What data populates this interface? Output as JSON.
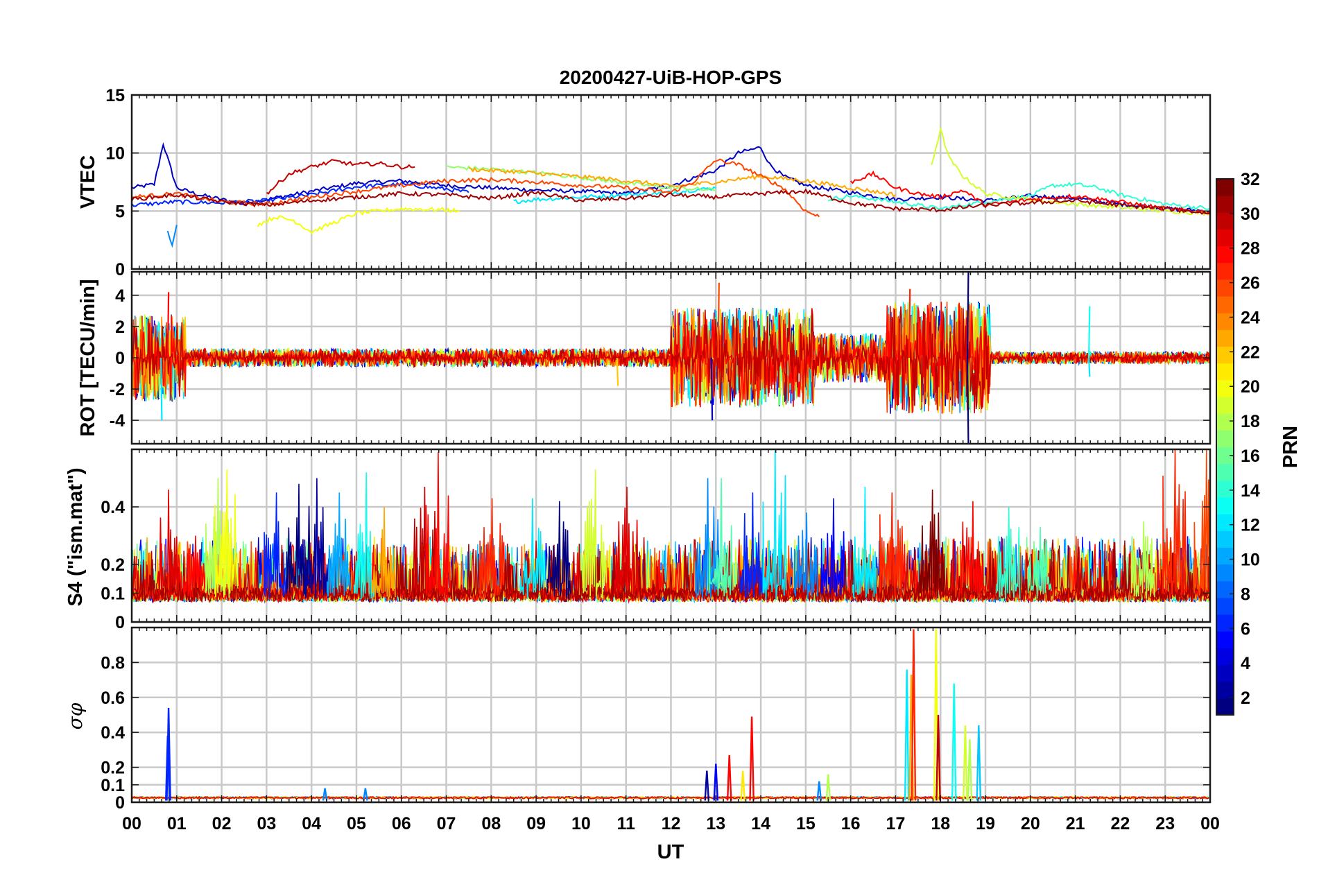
{
  "chart_data": {
    "type": "line",
    "title": "20200427-UiB-HOP-GPS",
    "xlabel": "UT",
    "x_tick_labels": [
      "00",
      "01",
      "02",
      "03",
      "04",
      "05",
      "06",
      "07",
      "08",
      "09",
      "10",
      "11",
      "12",
      "13",
      "14",
      "15",
      "16",
      "17",
      "18",
      "19",
      "20",
      "21",
      "22",
      "23",
      "00"
    ],
    "xlim_hours": [
      0,
      24
    ],
    "grid": true,
    "panels": [
      {
        "key": "vtec",
        "ylabel": "VTEC",
        "ylim": [
          0,
          15
        ],
        "ytick_values": [
          0,
          5,
          10,
          15
        ],
        "ytick_labels": [
          "0",
          "5",
          "10",
          "15"
        ],
        "series": [
          {
            "prn": 3,
            "x": [
              0,
              0.5,
              0.7,
              1,
              1.5,
              2,
              2.5,
              3,
              4,
              5,
              6,
              7,
              8,
              9,
              10,
              11,
              12,
              13,
              13.5,
              14,
              14.2,
              14.5,
              15,
              16,
              17,
              18,
              19,
              20,
              21,
              22,
              23,
              24
            ],
            "y": [
              7,
              7.3,
              10.8,
              7,
              6.4,
              6,
              5.6,
              6,
              6.7,
              7.4,
              7.6,
              7.2,
              7,
              6.8,
              6.7,
              6.5,
              7.2,
              8.5,
              10,
              10.5,
              9,
              8,
              7.2,
              6.6,
              6,
              6.2,
              5.9,
              6.3,
              6.1,
              5.6,
              5.2,
              5
            ]
          },
          {
            "prn": 6,
            "x": [
              0,
              1,
              2,
              3,
              4,
              5,
              6,
              7,
              7.5
            ],
            "y": [
              5.5,
              5.8,
              5.7,
              5.9,
              6.4,
              7.1,
              7.3,
              6.9,
              6.6
            ]
          },
          {
            "prn": 9,
            "x": [
              0.8,
              0.9,
              1.0
            ],
            "y": [
              3.2,
              1.9,
              3.8
            ]
          },
          {
            "prn": 12,
            "x": [
              8.5,
              9,
              10,
              11,
              12,
              13
            ],
            "y": [
              5.8,
              6,
              6.2,
              6.4,
              6.6,
              7
            ]
          },
          {
            "prn": 14,
            "x": [
              15.5,
              16,
              17,
              18,
              19,
              20,
              20.5,
              21,
              21.5,
              22,
              23,
              24
            ],
            "y": [
              6,
              6.3,
              5.8,
              5.2,
              5.8,
              6.3,
              7.2,
              7.3,
              7,
              6.4,
              5.6,
              5.2
            ]
          },
          {
            "prn": 17,
            "x": [
              7,
              8,
              9,
              10,
              11,
              12,
              13
            ],
            "y": [
              8.8,
              8.6,
              8.3,
              7.9,
              7.4,
              7,
              6.8
            ]
          },
          {
            "prn": 19,
            "x": [
              17.8,
              18,
              18.2,
              18.5,
              19,
              20,
              21,
              22,
              23,
              24
            ],
            "y": [
              9,
              12,
              9.5,
              8,
              6.5,
              6,
              5.6,
              5.3,
              5,
              4.8
            ]
          },
          {
            "prn": 20,
            "x": [
              2.8,
              3.2,
              3.6,
              4,
              4.5,
              5,
              6,
              7,
              7.3
            ],
            "y": [
              3.8,
              4.5,
              4.2,
              3.2,
              4,
              4.8,
              5.2,
              5.1,
              5
            ]
          },
          {
            "prn": 23,
            "x": [
              7.5,
              8.5,
              9.5,
              10.5,
              11.5,
              12,
              13,
              14,
              15,
              16,
              17
            ],
            "y": [
              8.6,
              8.4,
              8.1,
              7.8,
              7.4,
              7.1,
              7.5,
              8,
              7.6,
              7,
              6.4
            ]
          },
          {
            "prn": 26,
            "x": [
              0,
              1,
              2,
              3,
              4,
              5,
              6,
              7,
              8,
              9,
              10,
              11,
              12,
              12.5,
              13,
              13.5,
              14,
              14.5,
              15,
              15.3
            ],
            "y": [
              6.2,
              6.5,
              5.8,
              5.6,
              6.2,
              6.7,
              7.2,
              7.6,
              7.7,
              7.5,
              7.2,
              7,
              6.6,
              7.5,
              9.4,
              9,
              8,
              7,
              5,
              4.5
            ]
          },
          {
            "prn": 28,
            "x": [
              16,
              16.5,
              17,
              17.5,
              18,
              18.5,
              19,
              20,
              21,
              22,
              23,
              24
            ],
            "y": [
              7.5,
              8.2,
              7,
              6.5,
              6.2,
              6.8,
              5.5,
              6,
              6.3,
              5.8,
              5.2,
              4.9
            ]
          },
          {
            "prn": 30,
            "x": [
              3,
              3.5,
              4,
              4.5,
              5,
              5.5,
              6,
              6.3
            ],
            "y": [
              6.5,
              8.2,
              8.8,
              9.3,
              9,
              9.1,
              8.8,
              8.8
            ]
          },
          {
            "prn": 31,
            "x": [
              0,
              1,
              2,
              3,
              4,
              5,
              6,
              7,
              8,
              9,
              10,
              11,
              12,
              13,
              14,
              15,
              16,
              17,
              18,
              19,
              20,
              21,
              22,
              23,
              24
            ],
            "y": [
              6,
              6.4,
              5.8,
              5.5,
              5.9,
              6.2,
              6.5,
              6.4,
              6.1,
              6.6,
              5.9,
              6.1,
              6.4,
              6.2,
              6.5,
              6.7,
              5.7,
              5.2,
              5.1,
              5.5,
              5.7,
              5.9,
              5.5,
              5.2,
              4.8
            ]
          }
        ]
      },
      {
        "key": "rot",
        "ylabel": "ROT [TECU/min]",
        "ylim": [
          -5.5,
          5.5
        ],
        "ytick_values": [
          -4,
          -2,
          0,
          2,
          4
        ],
        "ytick_labels": [
          "-4",
          "-2",
          "0",
          "2",
          "4"
        ],
        "active_windows": [
          {
            "from": 0,
            "to": 1.2,
            "amplitude": 2.8
          },
          {
            "from": 1.2,
            "to": 12,
            "amplitude": 0.6
          },
          {
            "from": 12,
            "to": 15.2,
            "amplitude": 3.2
          },
          {
            "from": 15.2,
            "to": 16.8,
            "amplitude": 1.6
          },
          {
            "from": 16.8,
            "to": 19.1,
            "amplitude": 3.6
          },
          {
            "from": 19.1,
            "to": 24,
            "amplitude": 0.4
          }
        ],
        "spikes": [
          {
            "x": 0.65,
            "y": -4
          },
          {
            "x": 0.8,
            "y": 4.2
          },
          {
            "x": 10.8,
            "y": -1.8
          },
          {
            "x": 13.05,
            "y": 4.8
          },
          {
            "x": 12.9,
            "y": -4
          },
          {
            "x": 17.3,
            "y": 4.4
          },
          {
            "x": 17.3,
            "y": -2.5
          },
          {
            "x": 18.6,
            "y": 5.5
          },
          {
            "x": 18.6,
            "y": -5.5
          },
          {
            "x": 21.3,
            "y": 3.3
          },
          {
            "x": 21.3,
            "y": -1.2
          }
        ]
      },
      {
        "key": "s4",
        "ylabel": "S4 (\"ism.mat\")",
        "ylim": [
          0,
          0.6
        ],
        "ytick_values": [
          0,
          0.1,
          0.2,
          0.4
        ],
        "ytick_labels": [
          "0",
          "0.1",
          "0.2",
          "0.4"
        ],
        "baseline": 0.07,
        "peak_events": [
          {
            "x": 0.8,
            "y": 0.46
          },
          {
            "x": 1.4,
            "y": 0.3
          },
          {
            "x": 1.9,
            "y": 0.5
          },
          {
            "x": 2.1,
            "y": 0.53
          },
          {
            "x": 3.2,
            "y": 0.45
          },
          {
            "x": 3.7,
            "y": 0.48
          },
          {
            "x": 4.1,
            "y": 0.5
          },
          {
            "x": 4.6,
            "y": 0.45
          },
          {
            "x": 5.2,
            "y": 0.52
          },
          {
            "x": 5.6,
            "y": 0.4
          },
          {
            "x": 6.5,
            "y": 0.47
          },
          {
            "x": 6.8,
            "y": 0.59
          },
          {
            "x": 8.0,
            "y": 0.43
          },
          {
            "x": 8.9,
            "y": 0.43
          },
          {
            "x": 9.5,
            "y": 0.42
          },
          {
            "x": 10.3,
            "y": 0.53
          },
          {
            "x": 11.0,
            "y": 0.47
          },
          {
            "x": 12.8,
            "y": 0.5
          },
          {
            "x": 13.1,
            "y": 0.5
          },
          {
            "x": 13.8,
            "y": 0.45
          },
          {
            "x": 14.3,
            "y": 0.61
          },
          {
            "x": 15.0,
            "y": 0.38
          },
          {
            "x": 15.6,
            "y": 0.43
          },
          {
            "x": 16.3,
            "y": 0.47
          },
          {
            "x": 16.9,
            "y": 0.45
          },
          {
            "x": 17.8,
            "y": 0.46
          },
          {
            "x": 18.7,
            "y": 0.42
          },
          {
            "x": 19.5,
            "y": 0.4
          },
          {
            "x": 20.2,
            "y": 0.33
          },
          {
            "x": 22.5,
            "y": 0.35
          },
          {
            "x": 23.2,
            "y": 0.61
          },
          {
            "x": 23.9,
            "y": 0.6
          }
        ]
      },
      {
        "key": "sigma",
        "ylabel": "σφ",
        "ylim": [
          0,
          1
        ],
        "ytick_values": [
          0,
          0.1,
          0.2,
          0.4,
          0.6,
          0.8
        ],
        "ytick_labels": [
          "0",
          "0.1",
          "0.2",
          "0.4",
          "0.6",
          "0.8"
        ],
        "baseline": 0.02,
        "spikes": [
          {
            "x": 0.8,
            "y": 0.38,
            "prn": 6
          },
          {
            "x": 0.82,
            "y": 0.54,
            "prn": 6
          },
          {
            "x": 4.3,
            "y": 0.08,
            "prn": 9
          },
          {
            "x": 5.2,
            "y": 0.08,
            "prn": 9
          },
          {
            "x": 12.8,
            "y": 0.18,
            "prn": 2
          },
          {
            "x": 13.0,
            "y": 0.22,
            "prn": 5
          },
          {
            "x": 13.3,
            "y": 0.27,
            "prn": 28
          },
          {
            "x": 13.6,
            "y": 0.18,
            "prn": 21
          },
          {
            "x": 13.8,
            "y": 0.49,
            "prn": 28
          },
          {
            "x": 15.3,
            "y": 0.12,
            "prn": 9
          },
          {
            "x": 15.5,
            "y": 0.16,
            "prn": 18
          },
          {
            "x": 17.25,
            "y": 0.76,
            "prn": 12
          },
          {
            "x": 17.35,
            "y": 0.73,
            "prn": 23
          },
          {
            "x": 17.4,
            "y": 0.99,
            "prn": 27
          },
          {
            "x": 17.9,
            "y": 0.99,
            "prn": 20
          },
          {
            "x": 17.95,
            "y": 0.5,
            "prn": 30
          },
          {
            "x": 18.3,
            "y": 0.68,
            "prn": 13
          },
          {
            "x": 18.55,
            "y": 0.44,
            "prn": 19
          },
          {
            "x": 18.65,
            "y": 0.36,
            "prn": 18
          },
          {
            "x": 18.85,
            "y": 0.44,
            "prn": 11
          }
        ]
      }
    ],
    "colorbar": {
      "label": "PRN",
      "colormap": "jet",
      "range": [
        1,
        32
      ],
      "levels": 32,
      "tick_values": [
        2,
        4,
        6,
        8,
        10,
        12,
        14,
        16,
        18,
        20,
        22,
        24,
        26,
        28,
        30,
        32
      ],
      "tick_labels": [
        "2",
        "4",
        "6",
        "8",
        "10",
        "12",
        "14",
        "16",
        "18",
        "20",
        "22",
        "24",
        "26",
        "28",
        "30",
        "32"
      ],
      "location": "right"
    }
  }
}
